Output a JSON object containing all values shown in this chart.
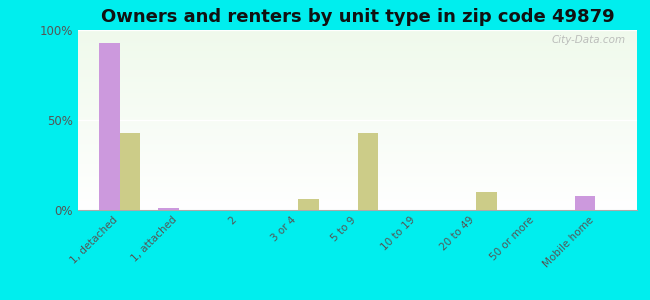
{
  "title": "Owners and renters by unit type in zip code 49879",
  "categories": [
    "1, detached",
    "1, attached",
    "2",
    "3 or 4",
    "5 to 9",
    "10 to 19",
    "20 to 49",
    "50 or more",
    "Mobile home"
  ],
  "owner_values": [
    93,
    1,
    0,
    0,
    0,
    0,
    0,
    0,
    8
  ],
  "renter_values": [
    43,
    0,
    0,
    6,
    43,
    0,
    10,
    0,
    0
  ],
  "owner_color": "#cc99dd",
  "renter_color": "#cccc88",
  "background_color": "#00eeee",
  "ylim": [
    0,
    100
  ],
  "yticks": [
    0,
    50,
    100
  ],
  "ytick_labels": [
    "0%",
    "50%",
    "100%"
  ],
  "bar_width": 0.35,
  "title_fontsize": 13
}
